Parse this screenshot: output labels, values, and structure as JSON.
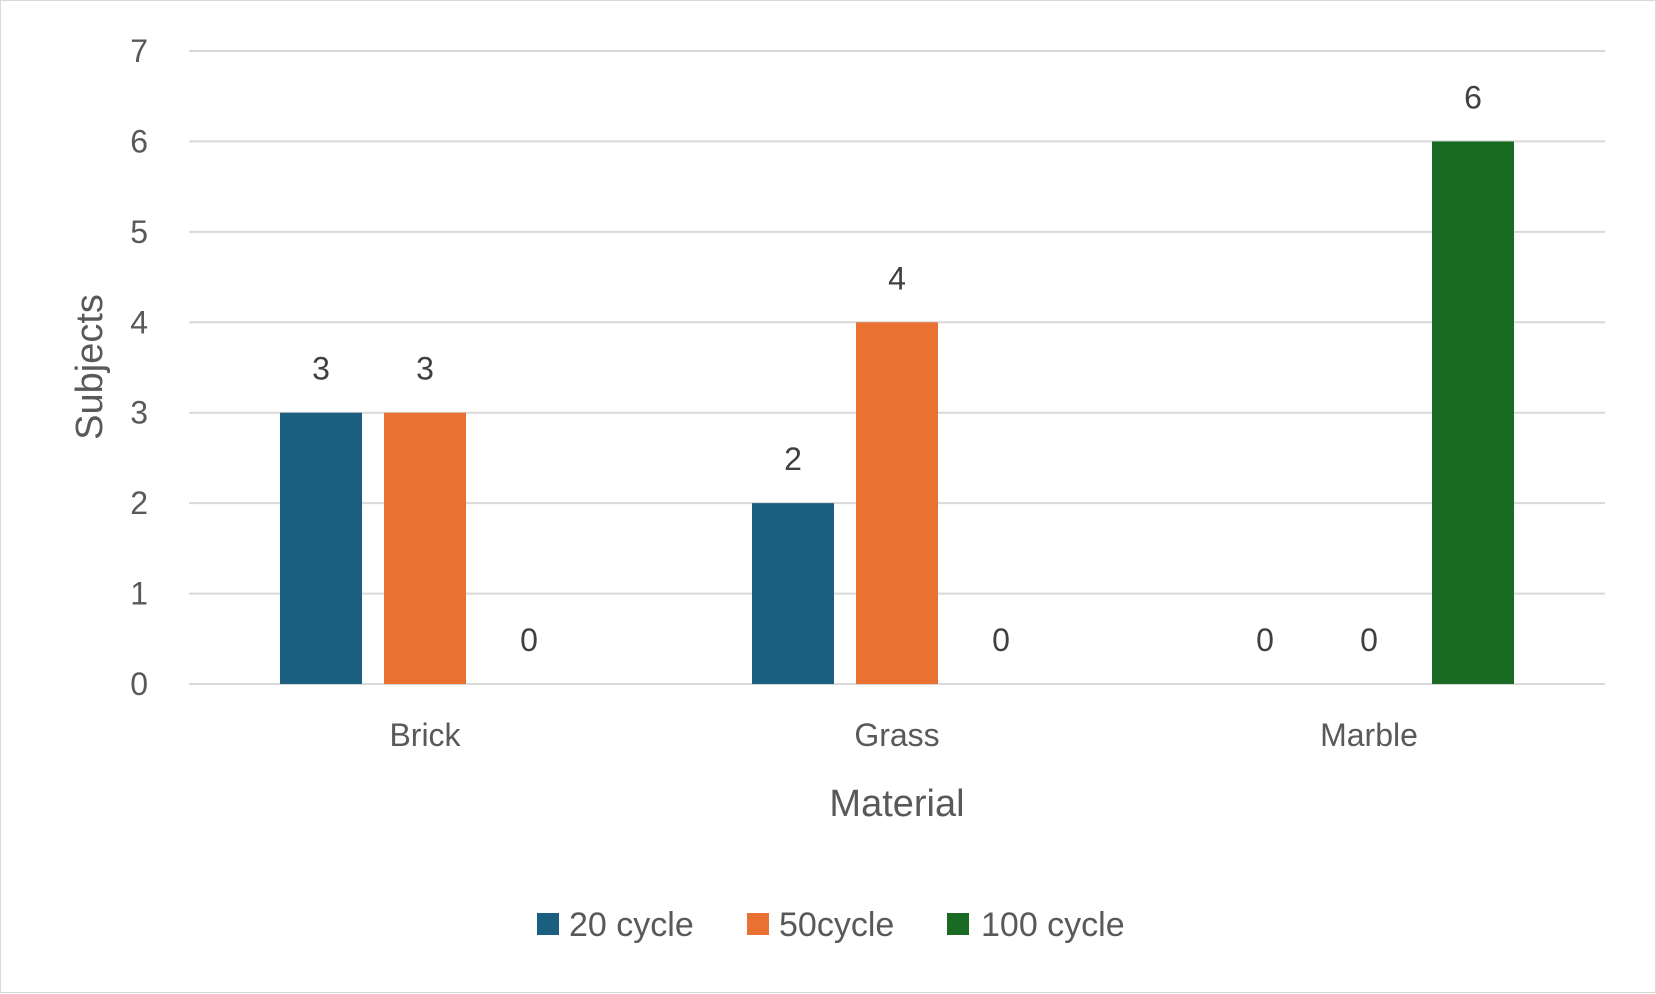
{
  "chart_data": {
    "type": "bar",
    "title": "",
    "xlabel": "Material",
    "ylabel": "Subjects",
    "categories": [
      "Brick",
      "Grass",
      "Marble"
    ],
    "series": [
      {
        "name": "20 cycle",
        "values": [
          3,
          2,
          0
        ],
        "color": "#1a5e80"
      },
      {
        "name": "50cycle",
        "values": [
          3,
          4,
          0
        ],
        "color": "#e97132"
      },
      {
        "name": "100 cycle",
        "values": [
          0,
          0,
          6
        ],
        "color": "#196b24"
      }
    ],
    "ylim": [
      0,
      7
    ],
    "yticks": [
      "0",
      "1",
      "2",
      "3",
      "4",
      "5",
      "6",
      "7"
    ],
    "grid": true,
    "data_labels": true,
    "legend_position": "bottom"
  }
}
